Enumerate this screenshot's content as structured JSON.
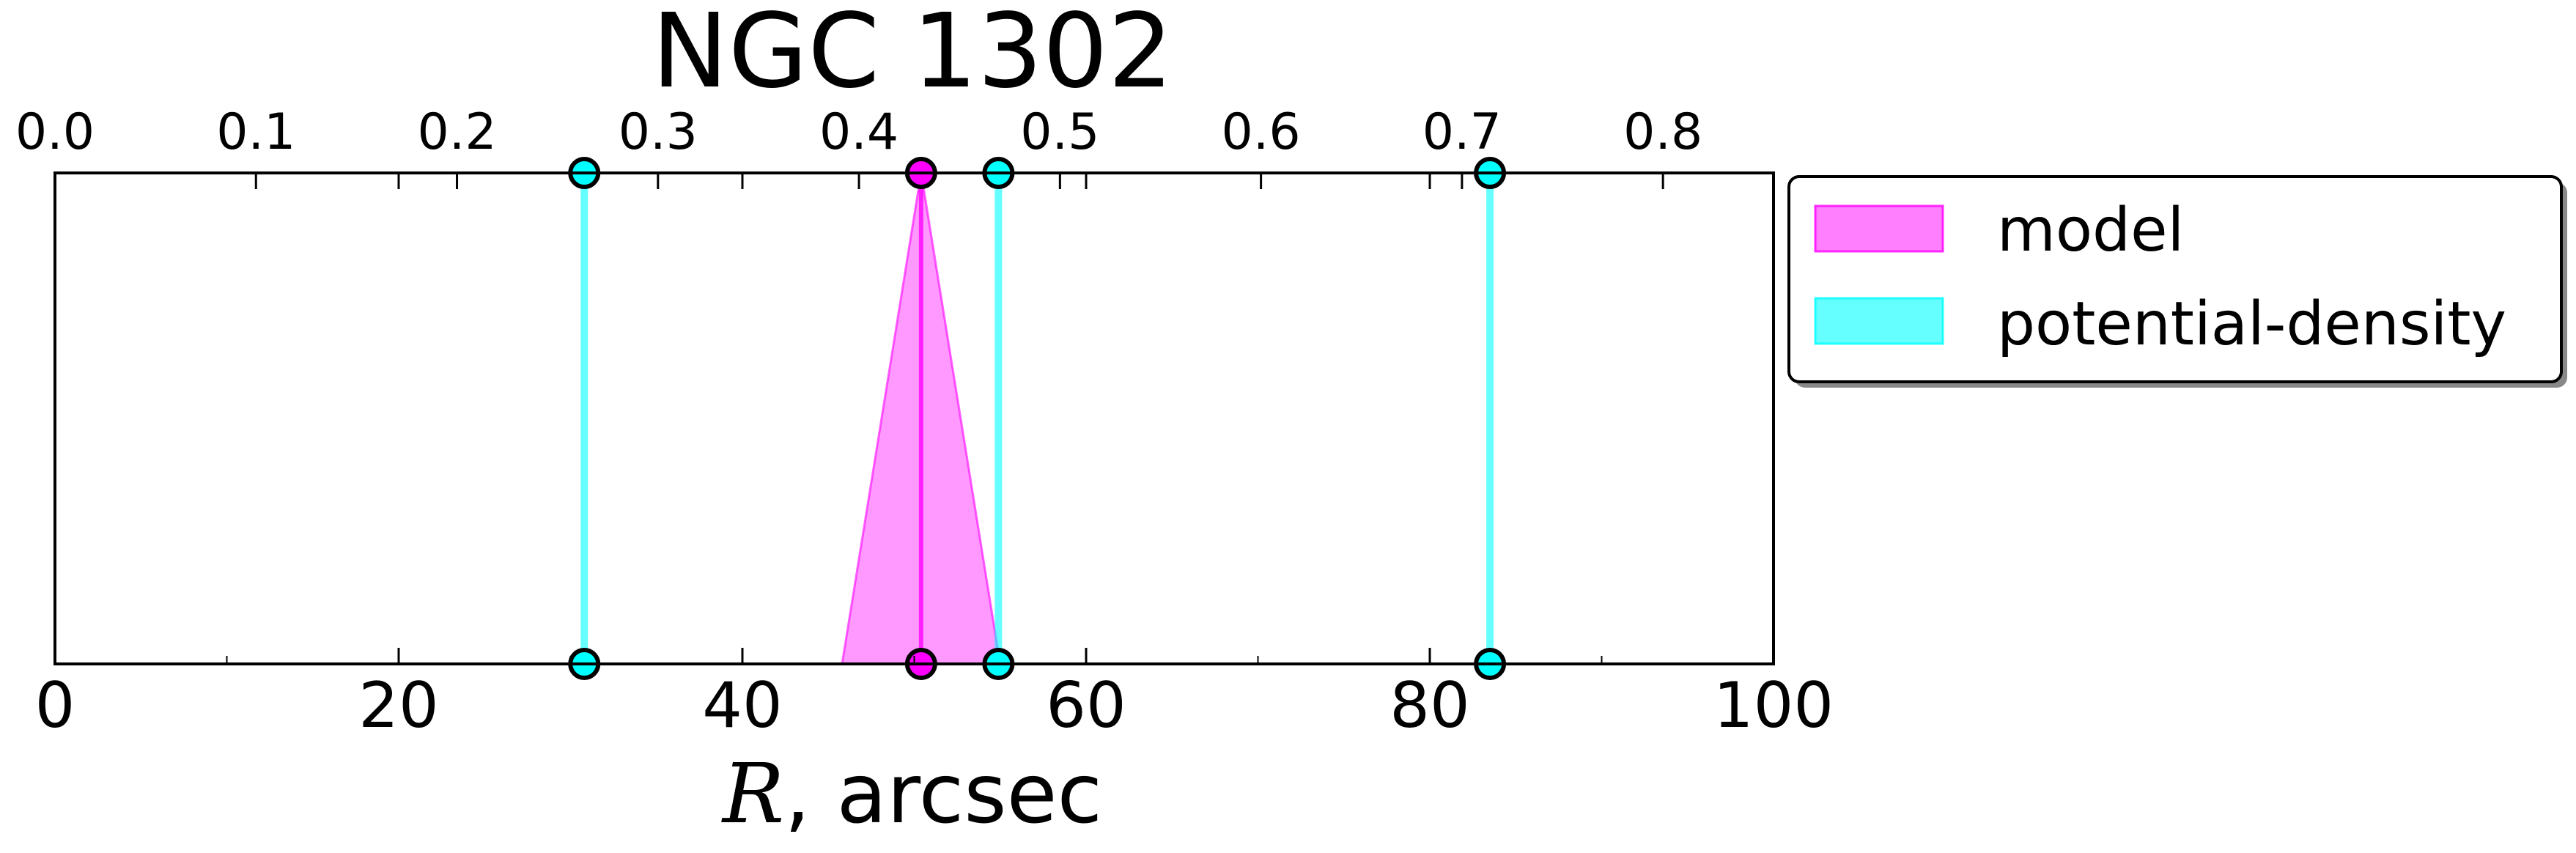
{
  "chart_data": {
    "type": "area",
    "title": "NGC 1302",
    "xlabel_var": "R",
    "xlabel_unit": ", arcsec",
    "xlim": [
      0,
      100
    ],
    "ylim": [
      0,
      1
    ],
    "grid": false,
    "legend_position": "outside-right",
    "bottom_ticks": [
      {
        "value": 0,
        "label": "0"
      },
      {
        "value": 20,
        "label": "20"
      },
      {
        "value": 40,
        "label": "40"
      },
      {
        "value": 60,
        "label": "60"
      },
      {
        "value": 80,
        "label": "80"
      },
      {
        "value": 100,
        "label": "100"
      }
    ],
    "top_ticks": [
      {
        "value": 0.0,
        "label": "0.0"
      },
      {
        "value": 0.1,
        "label": "0.1"
      },
      {
        "value": 0.2,
        "label": "0.2"
      },
      {
        "value": 0.3,
        "label": "0.3"
      },
      {
        "value": 0.4,
        "label": "0.4"
      },
      {
        "value": 0.5,
        "label": "0.5"
      },
      {
        "value": 0.6,
        "label": "0.6"
      },
      {
        "value": 0.7,
        "label": "0.7"
      },
      {
        "value": 0.8,
        "label": "0.8"
      }
    ],
    "top_axis_max": 0.855,
    "series": [
      {
        "name": "model",
        "color": "#ff00ff",
        "fill_opacity": 0.4,
        "bands": [
          {
            "center": 50.4,
            "lower": 45.8,
            "upper": 55.0
          }
        ]
      },
      {
        "name": "potential-density",
        "color": "#00ffff",
        "fill_opacity": 0.5,
        "bands": [
          {
            "center": 30.8,
            "lower": 30.8,
            "upper": 30.8
          },
          {
            "center": 54.9,
            "lower": 54.9,
            "upper": 54.9
          },
          {
            "center": 83.5,
            "lower": 83.5,
            "upper": 83.5
          }
        ]
      }
    ]
  },
  "colors": {
    "model": "#ff00ff",
    "potential_density": "#00ffff"
  }
}
